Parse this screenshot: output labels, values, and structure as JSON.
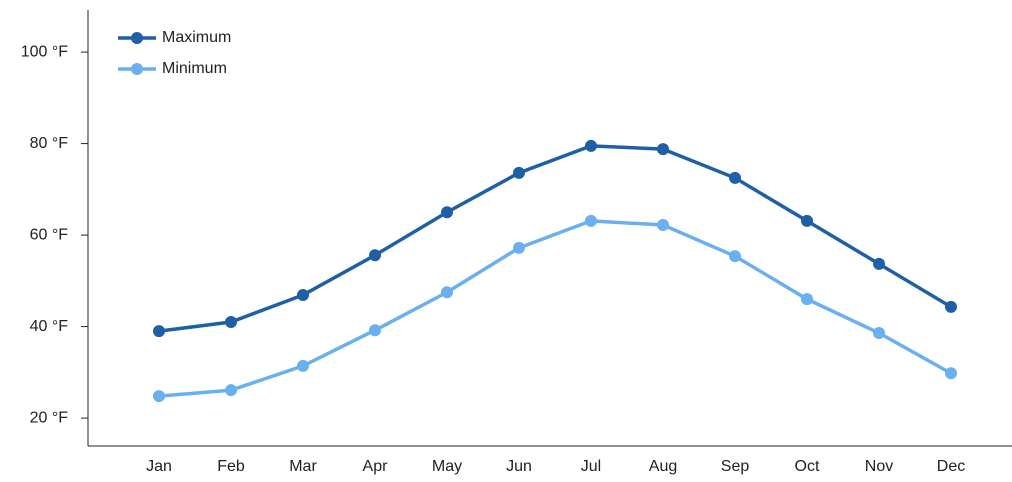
{
  "chart_data": {
    "type": "line",
    "categories": [
      "Jan",
      "Feb",
      "Mar",
      "Apr",
      "May",
      "Jun",
      "Jul",
      "Aug",
      "Sep",
      "Oct",
      "Nov",
      "Dec"
    ],
    "series": [
      {
        "name": "Maximum",
        "color": "#1f5fa6",
        "values": [
          39.0,
          41.0,
          46.9,
          55.6,
          65.0,
          73.6,
          79.5,
          78.8,
          72.5,
          63.1,
          53.7,
          44.3
        ]
      },
      {
        "name": "Minimum",
        "color": "#6aaff0",
        "values": [
          24.8,
          26.1,
          31.4,
          39.2,
          47.5,
          57.2,
          63.1,
          62.2,
          55.4,
          46.0,
          38.6,
          29.8
        ]
      }
    ],
    "ylim": [
      13.9,
      109.2
    ],
    "yticks": [
      {
        "value": 20,
        "label": "20 °F"
      },
      {
        "value": 40,
        "label": "40 °F"
      },
      {
        "value": 60,
        "label": "60 °F"
      },
      {
        "value": 80,
        "label": "80 °F"
      },
      {
        "value": 100,
        "label": "100 °F"
      }
    ],
    "legend": "top-left"
  }
}
